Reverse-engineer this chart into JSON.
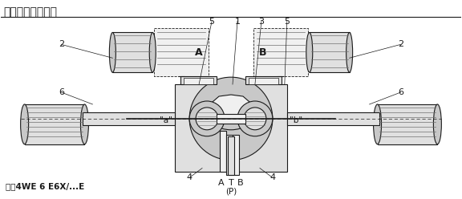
{
  "title": "功能说明，剖视图",
  "model_text": "型号4WE 6 E6X/...E",
  "background_color": "#ffffff",
  "line_color": "#1a1a1a",
  "gray_fill": "#b0b0b0",
  "med_gray": "#c8c8c8",
  "light_gray": "#e0e0e0",
  "dark_gray": "#707070",
  "very_light": "#f0f0f0",
  "solenoid_A_label": "A",
  "solenoid_B_label": "B",
  "port_bottom_label": "(P)",
  "title_fontsize": 10,
  "label_fontsize": 8,
  "small_fontsize": 7.5
}
